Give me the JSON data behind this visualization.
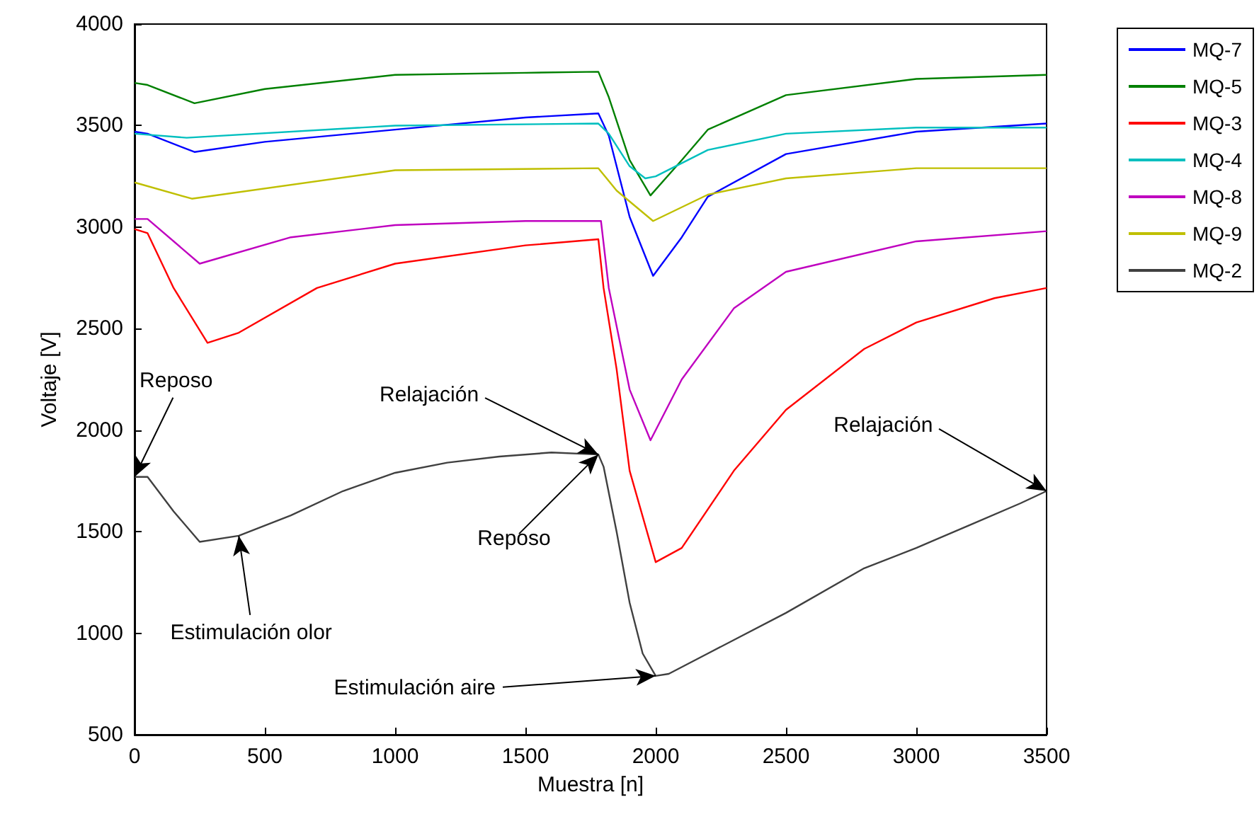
{
  "chart_data": {
    "type": "line",
    "xlabel": "Muestra [n]",
    "ylabel": "Voltaje [V]",
    "xlim": [
      0,
      3500
    ],
    "xticks": [
      0,
      500,
      1000,
      1500,
      2000,
      2500,
      3000,
      3500
    ],
    "ylim": [
      500,
      4000
    ],
    "yticks": [
      500,
      1000,
      1500,
      2000,
      2500,
      3000,
      3500,
      4000
    ],
    "grid": false,
    "legend": "top right",
    "marker": "none",
    "line_style": "solid",
    "series": [
      {
        "name": "MQ-7",
        "color": "#0000ff",
        "x": [
          0,
          50,
          230,
          500,
          1000,
          1500,
          1780,
          1820,
          1900,
          1990,
          2100,
          2200,
          2500,
          3000,
          3500
        ],
        "values": [
          3470,
          3460,
          3370,
          3420,
          3480,
          3540,
          3560,
          3450,
          3050,
          2760,
          2950,
          3150,
          3360,
          3470,
          3510
        ]
      },
      {
        "name": "MQ-5",
        "color": "#008000",
        "x": [
          0,
          50,
          230,
          500,
          1000,
          1500,
          1780,
          1820,
          1900,
          1980,
          2100,
          2200,
          2500,
          3000,
          3500
        ],
        "values": [
          3710,
          3700,
          3610,
          3680,
          3750,
          3760,
          3765,
          3640,
          3330,
          3156,
          3330,
          3480,
          3650,
          3730,
          3750
        ]
      },
      {
        "name": "MQ-3",
        "color": "#ff0000",
        "x": [
          0,
          50,
          150,
          280,
          400,
          700,
          1000,
          1500,
          1780,
          1800,
          1850,
          1900,
          2000,
          2100,
          2300,
          2500,
          2800,
          3000,
          3300,
          3500
        ],
        "values": [
          2990,
          2970,
          2700,
          2430,
          2480,
          2700,
          2820,
          2910,
          2940,
          2700,
          2300,
          1800,
          1350,
          1420,
          1800,
          2100,
          2400,
          2530,
          2650,
          2700
        ]
      },
      {
        "name": "MQ-4",
        "color": "#00bfbf",
        "x": [
          0,
          200,
          1000,
          1780,
          1820,
          1900,
          1960,
          2000,
          2200,
          2500,
          3000,
          3500
        ],
        "values": [
          3460,
          3440,
          3500,
          3510,
          3460,
          3300,
          3240,
          3250,
          3380,
          3460,
          3490,
          3490
        ]
      },
      {
        "name": "MQ-8",
        "color": "#bf00bf",
        "x": [
          0,
          50,
          250,
          600,
          1000,
          1500,
          1790,
          1820,
          1900,
          1980,
          2100,
          2300,
          2500,
          3000,
          3500
        ],
        "values": [
          3040,
          3040,
          2820,
          2950,
          3010,
          3030,
          3030,
          2700,
          2200,
          1950,
          2250,
          2600,
          2780,
          2930,
          2980
        ]
      },
      {
        "name": "MQ-9",
        "color": "#bfbf00",
        "x": [
          0,
          220,
          1000,
          1780,
          1850,
          1990,
          2200,
          2500,
          3000,
          3500
        ],
        "values": [
          3220,
          3140,
          3280,
          3290,
          3180,
          3030,
          3160,
          3240,
          3290,
          3290
        ]
      },
      {
        "name": "MQ-2",
        "color": "#404040",
        "x": [
          0,
          50,
          150,
          250,
          400,
          600,
          800,
          1000,
          1200,
          1400,
          1600,
          1780,
          1800,
          1850,
          1900,
          1950,
          2000,
          2050,
          2200,
          2500,
          2800,
          3000,
          3200,
          3400,
          3500
        ],
        "values": [
          1770,
          1770,
          1600,
          1450,
          1480,
          1580,
          1700,
          1790,
          1840,
          1870,
          1890,
          1880,
          1820,
          1500,
          1150,
          900,
          790,
          800,
          900,
          1100,
          1320,
          1420,
          1530,
          1640,
          1700
        ]
      }
    ],
    "annotations": [
      {
        "text": "Reposo",
        "x": 0,
        "y": 1770
      },
      {
        "text": "Estimulación olor",
        "x": 400,
        "y": 1480
      },
      {
        "text": "Relajación",
        "x": 1780,
        "y": 1880
      },
      {
        "text": "Reposo",
        "x": 1780,
        "y": 1880
      },
      {
        "text": "Estimulación aire",
        "x": 2000,
        "y": 790
      },
      {
        "text": "Relajación",
        "x": 3500,
        "y": 1700
      }
    ]
  }
}
